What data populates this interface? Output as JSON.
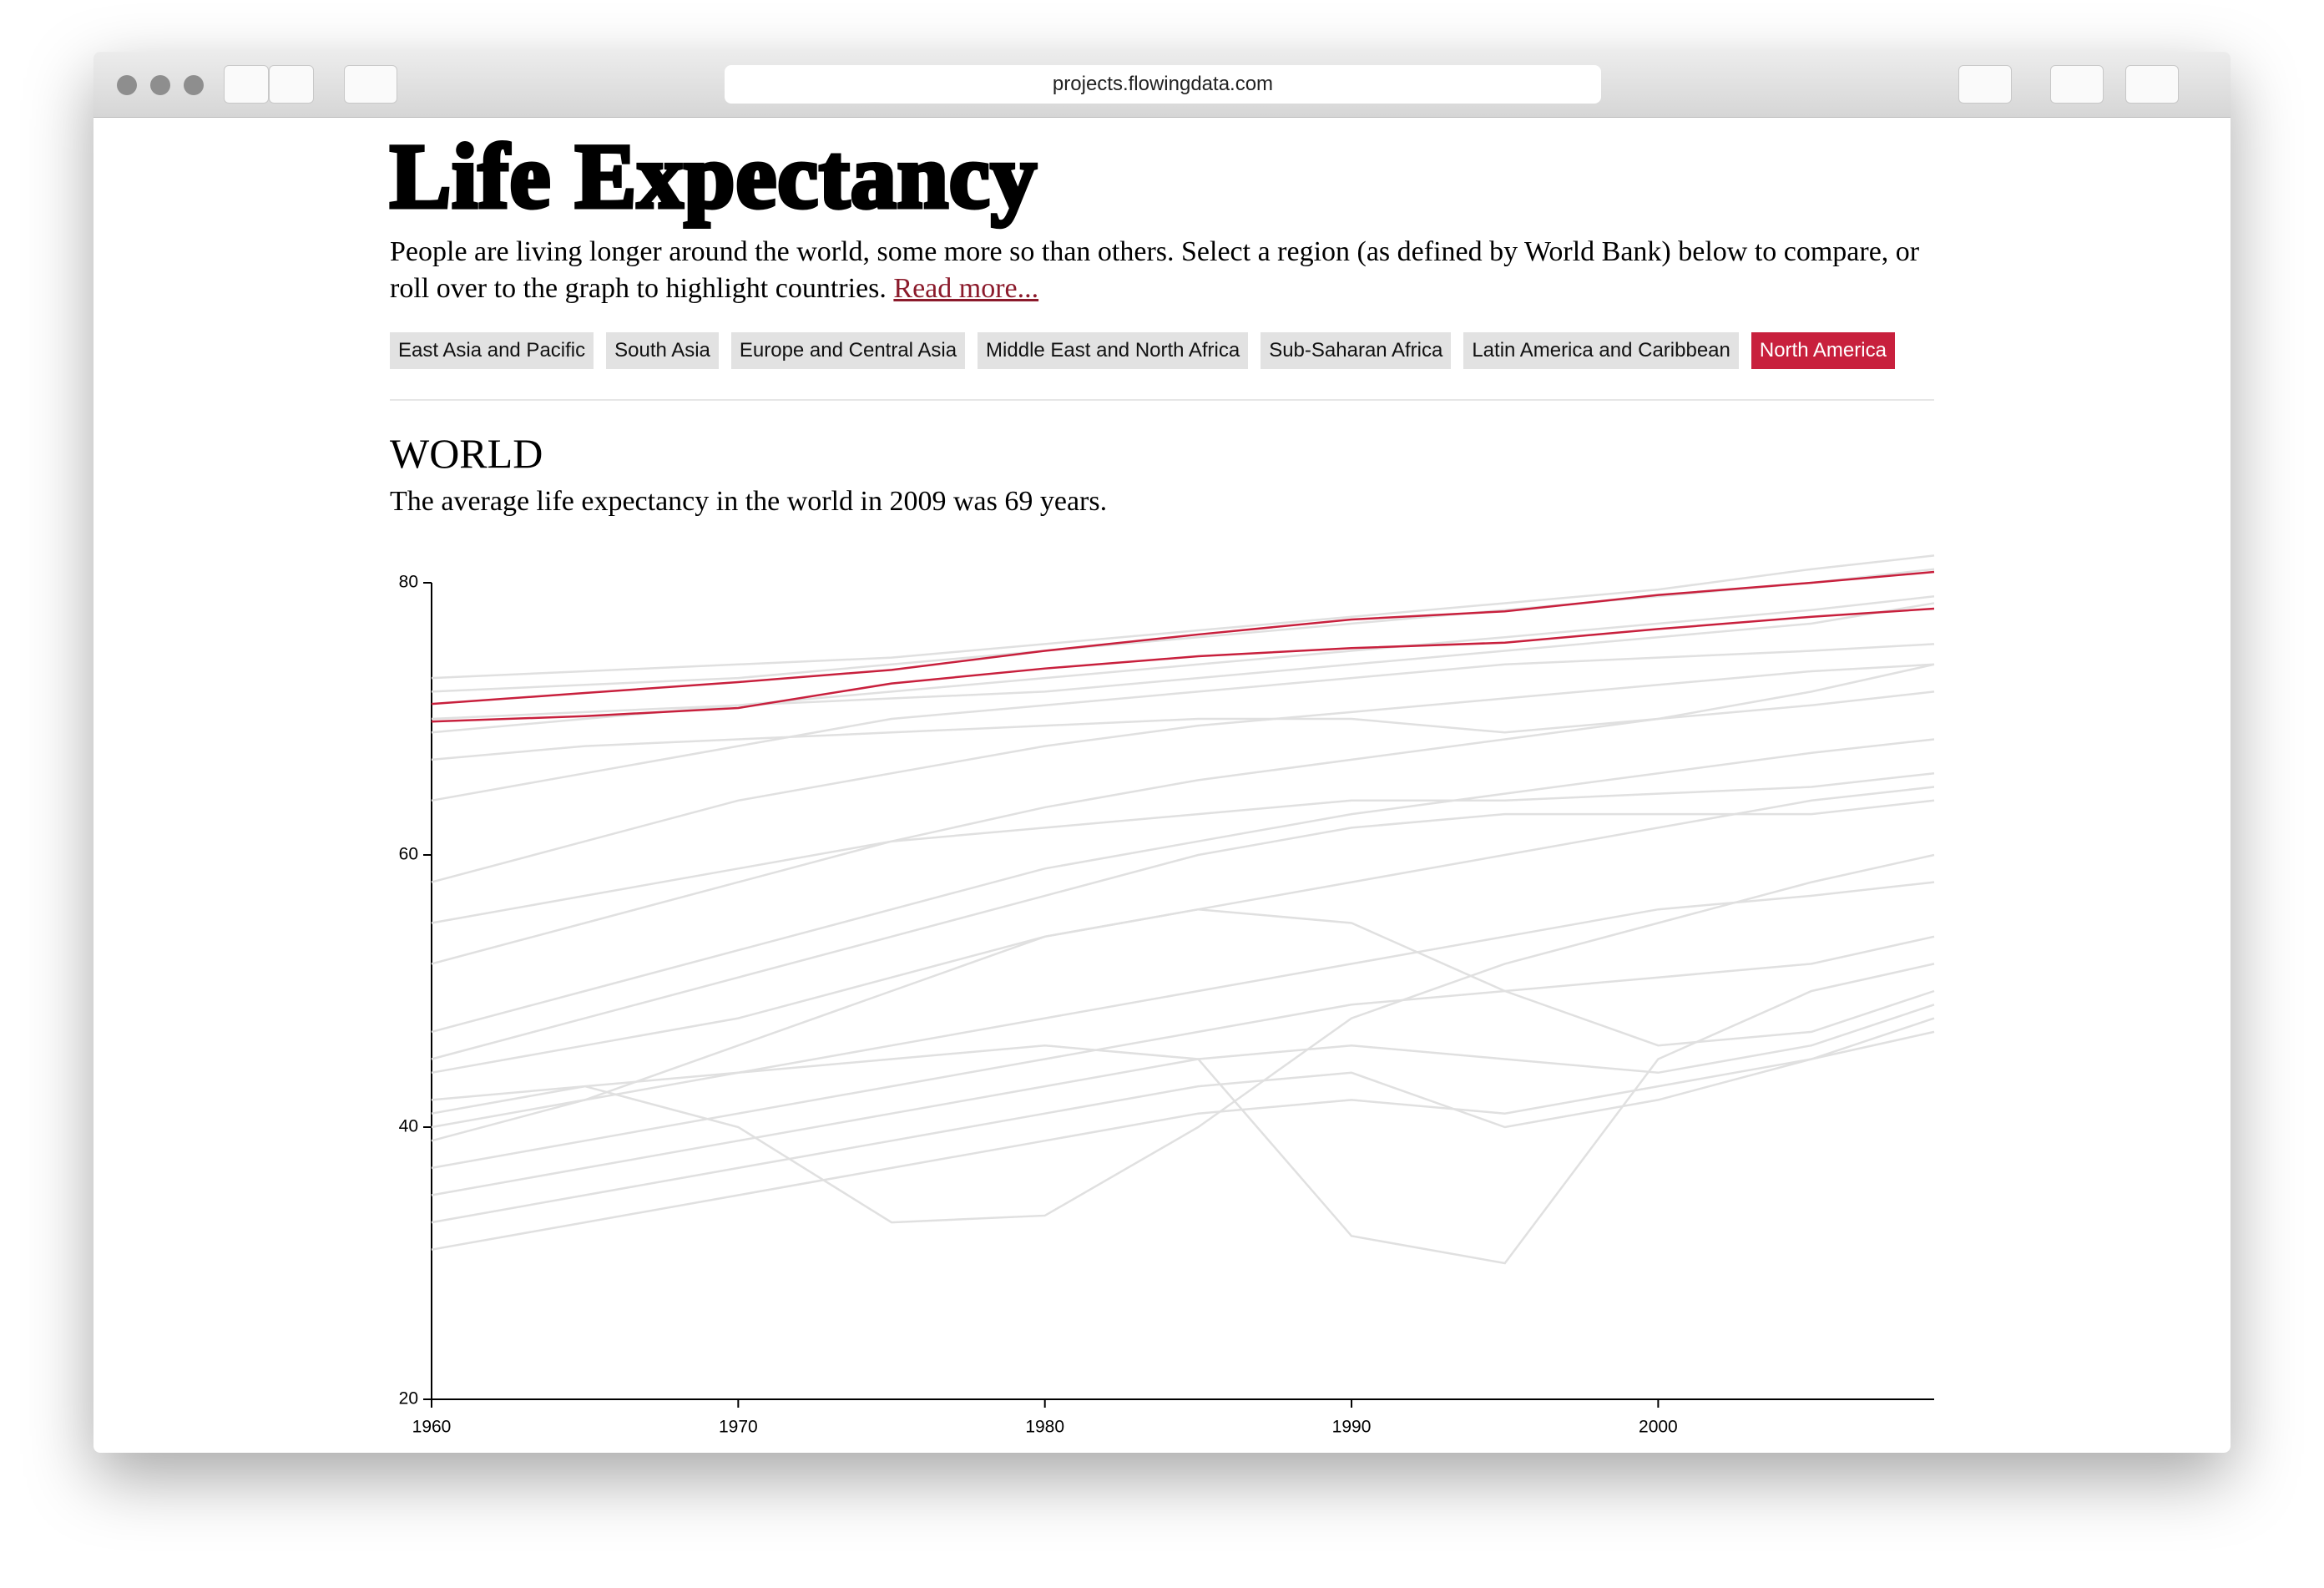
{
  "browser": {
    "url": "projects.flowingdata.com"
  },
  "header": {
    "title": "Life Expectancy",
    "intro": "People are living longer around the world, some more so than others. Select a region (as defined by World Bank) below to compare, or roll over to the graph to highlight countries.",
    "read_more": "Read more..."
  },
  "regions": [
    "East Asia and Pacific",
    "South Asia",
    "Europe and Central Asia",
    "Middle East and North Africa",
    "Sub-Saharan Africa",
    "Latin America and Caribbean",
    "North America"
  ],
  "section": {
    "title": "WORLD",
    "summary": "The average life expectancy in the world in 2009 was 69 years."
  },
  "chart_data": {
    "type": "line",
    "x": [
      1960,
      1965,
      1970,
      1975,
      1980,
      1985,
      1990,
      1995,
      2000,
      2005,
      2009
    ],
    "xlim": [
      1960,
      2009
    ],
    "xticks": [
      1960,
      1970,
      1980,
      1990,
      2000
    ],
    "ylim": [
      20,
      80
    ],
    "yticks": [
      20,
      40,
      60,
      80
    ],
    "series": [
      {
        "color": "#e0e0e0",
        "values": [
          73,
          73.5,
          74,
          74.5,
          75.5,
          76.5,
          77.5,
          78.5,
          79.5,
          81,
          82
        ]
      },
      {
        "color": "#e0e0e0",
        "values": [
          72,
          72.5,
          73,
          74,
          75,
          76,
          77,
          78,
          79,
          80,
          81
        ]
      },
      {
        "color": "#e0e0e0",
        "values": [
          69,
          70,
          71,
          72,
          73,
          74,
          75,
          76,
          77,
          78,
          79
        ]
      },
      {
        "color": "#e0e0e0",
        "values": [
          64,
          66,
          68,
          70,
          71,
          72,
          73,
          74,
          74.5,
          75,
          75.5
        ]
      },
      {
        "color": "#e0e0e0",
        "values": [
          58,
          61,
          64,
          66,
          68,
          69.5,
          70.5,
          71.5,
          72.5,
          73.5,
          74
        ]
      },
      {
        "color": "#e0e0e0",
        "values": [
          52,
          55,
          58,
          61,
          63.5,
          65.5,
          67,
          68.5,
          70,
          71,
          72
        ]
      },
      {
        "color": "#e0e0e0",
        "values": [
          47,
          50,
          53,
          56,
          59,
          61,
          63,
          64.5,
          66,
          67.5,
          68.5
        ]
      },
      {
        "color": "#e0e0e0",
        "values": [
          44,
          46,
          48,
          51,
          54,
          56,
          58,
          60,
          62,
          64,
          65
        ]
      },
      {
        "color": "#e0e0e0",
        "values": [
          41,
          43,
          40,
          33,
          33.5,
          40,
          48,
          52,
          55,
          58,
          60
        ]
      },
      {
        "color": "#e0e0e0",
        "values": [
          42,
          43,
          44,
          45,
          46,
          45,
          32,
          30,
          45,
          50,
          52
        ]
      },
      {
        "color": "#e0e0e0",
        "values": [
          40,
          42,
          44,
          46,
          48,
          50,
          52,
          54,
          56,
          57,
          58
        ]
      },
      {
        "color": "#e0e0e0",
        "values": [
          37,
          39,
          41,
          43,
          45,
          47,
          49,
          50,
          51,
          52,
          54
        ]
      },
      {
        "color": "#e0e0e0",
        "values": [
          35,
          37,
          39,
          41,
          43,
          45,
          46,
          45,
          44,
          46,
          49
        ]
      },
      {
        "color": "#e0e0e0",
        "values": [
          33,
          35,
          37,
          39,
          41,
          43,
          44,
          40,
          42,
          45,
          48
        ]
      },
      {
        "color": "#e0e0e0",
        "values": [
          31,
          33,
          35,
          37,
          39,
          41,
          42,
          41,
          43,
          45,
          47
        ]
      },
      {
        "color": "#e0e0e0",
        "values": [
          39,
          42,
          46,
          50,
          54,
          56,
          55,
          50,
          46,
          47,
          50
        ]
      },
      {
        "color": "#e0e0e0",
        "values": [
          45,
          48,
          51,
          54,
          57,
          60,
          62,
          63,
          63,
          63,
          64
        ]
      },
      {
        "color": "#e0e0e0",
        "values": [
          55,
          57,
          59,
          61,
          62,
          63,
          64,
          64,
          64.5,
          65,
          66
        ]
      },
      {
        "color": "#e0e0e0",
        "values": [
          67,
          68,
          68.5,
          69,
          69.5,
          70,
          70,
          69,
          70,
          72,
          74
        ]
      },
      {
        "color": "#e0e0e0",
        "values": [
          70,
          70.5,
          71,
          71.5,
          72,
          73,
          74,
          75,
          76,
          77,
          78.5
        ]
      },
      {
        "color": "#c8203d",
        "values": [
          69.8,
          70.2,
          70.8,
          72.6,
          73.7,
          74.6,
          75.2,
          75.6,
          76.6,
          77.5,
          78.1
        ]
      },
      {
        "color": "#c8203d",
        "values": [
          71.1,
          71.9,
          72.7,
          73.6,
          75.0,
          76.2,
          77.3,
          77.9,
          79.1,
          80.0,
          80.8
        ]
      }
    ]
  }
}
